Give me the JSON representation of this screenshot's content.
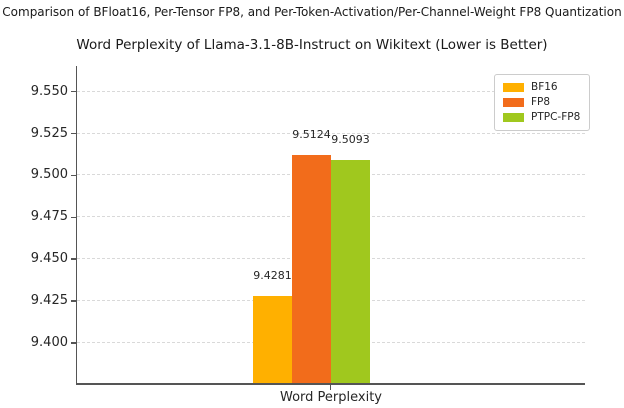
{
  "header": {
    "suptitle": "Comparison of BFloat16, Per-Tensor FP8, and Per-Token-Activation/Per-Channel-Weight FP8 Quantization",
    "title": "Word Perplexity of Llama-3.1-8B-Instruct on Wikitext (Lower is Better)"
  },
  "chart_data": {
    "type": "bar",
    "title": "Word Perplexity of Llama-3.1-8B-Instruct on Wikitext (Lower is Better)",
    "suptitle": "Comparison of BFloat16, Per-Tensor FP8, and Per-Token-Activation/Per-Channel-Weight FP8 Quantization",
    "categories": [
      "Word Perplexity"
    ],
    "series": [
      {
        "name": "BF16",
        "value": 9.4281,
        "label": "9.4281",
        "color": "#FFB000"
      },
      {
        "name": "FP8",
        "value": 9.5124,
        "label": "9.5124",
        "color": "#F26C1B"
      },
      {
        "name": "PTPC-FP8",
        "value": 9.5093,
        "label": "9.5093",
        "color": "#A0C81E"
      }
    ],
    "xlabel": "Word Perplexity",
    "ylabel": "",
    "ylim": [
      9.376,
      9.5665
    ],
    "ytick_values": [
      9.55,
      9.525,
      9.5,
      9.475,
      9.45,
      9.425,
      9.4
    ],
    "grid": "horizontal-dashed",
    "legend_position": "upper right",
    "colors": {
      "grid": "#d9d9d9",
      "spine": "#555555",
      "text": "#262626",
      "background": "#ffffff"
    }
  }
}
